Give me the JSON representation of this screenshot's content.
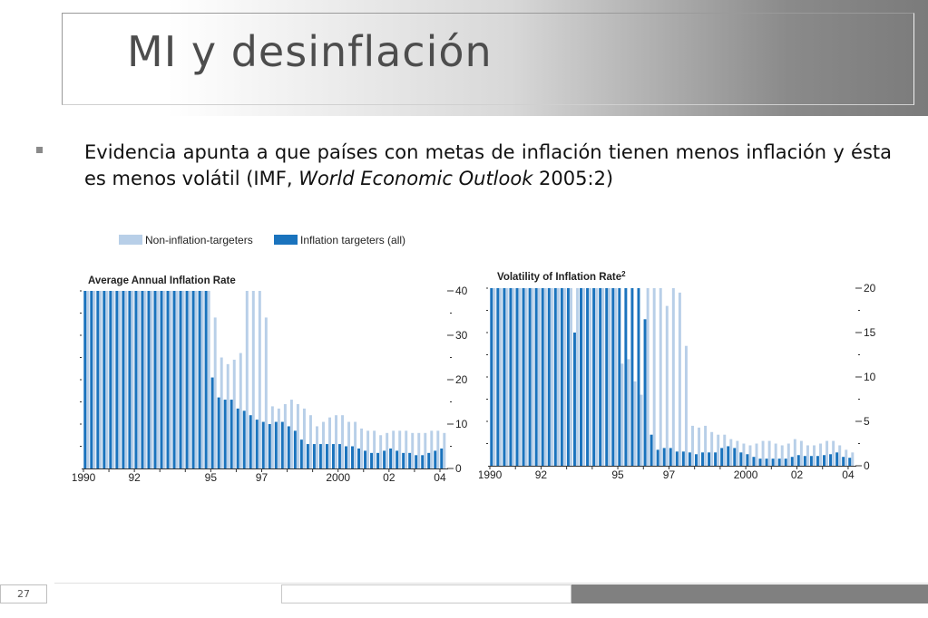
{
  "slide": {
    "title": "MI y desinflación",
    "bullet_text_1": "Evidencia apunta a que países con metas de inflación tienen menos inflación y ésta es menos volátil (IMF, ",
    "bullet_text_italic": "World Economic Outlook",
    "bullet_text_2": " 2005:2)",
    "page_number": "27"
  },
  "legend": [
    {
      "label": "Non-inflation-targeters",
      "color": "#b8cfe8"
    },
    {
      "label": "Inflation targeters (all)",
      "color": "#1a73bd"
    }
  ],
  "chart_data": [
    {
      "type": "bar",
      "title": "Average Annual Inflation Rate",
      "title_superscript": "",
      "x_start": 1990,
      "x_step": 0.25,
      "x_tick_labels": [
        {
          "x": 1990,
          "label": "1990"
        },
        {
          "x": 1992,
          "label": "92"
        },
        {
          "x": 1995,
          "label": "95"
        },
        {
          "x": 1997,
          "label": "97"
        },
        {
          "x": 2000,
          "label": "2000"
        },
        {
          "x": 2002,
          "label": "02"
        },
        {
          "x": 2004,
          "label": "04"
        }
      ],
      "ylim": [
        0,
        40
      ],
      "y_ticks": [
        0,
        10,
        20,
        30,
        40
      ],
      "y_label_side": "right",
      "series": [
        {
          "name": "Non-inflation-targeters",
          "color": "#b8cfe8",
          "values": [
            40,
            40,
            40,
            40,
            40,
            40,
            40,
            40,
            40,
            40,
            40,
            40,
            40,
            40,
            40,
            40,
            40,
            40,
            40,
            40,
            34,
            25,
            23.5,
            24.5,
            26,
            40,
            40,
            40,
            34,
            14,
            13.5,
            14.5,
            15.5,
            14.5,
            13.5,
            12,
            9.5,
            10.5,
            11.5,
            12,
            12,
            10.5,
            10.5,
            9,
            8.5,
            8.5,
            7.5,
            8,
            8.5,
            8.5,
            8.5,
            8,
            8,
            8,
            8.5,
            8.5,
            8
          ]
        },
        {
          "name": "Inflation targeters (all)",
          "color": "#1a73bd",
          "values": [
            40,
            40,
            40,
            40,
            40,
            40,
            40,
            40,
            40,
            40,
            40,
            40,
            40,
            40,
            40,
            40,
            40,
            40,
            40,
            40,
            20.5,
            16,
            15.5,
            15.5,
            13.5,
            13,
            12,
            11,
            10.5,
            10,
            10.5,
            10.5,
            9.5,
            8.5,
            6.5,
            5.5,
            5.5,
            5.5,
            5.5,
            5.5,
            5.5,
            5,
            5,
            4.5,
            4,
            3.5,
            3.5,
            4,
            4.5,
            4,
            3.5,
            3.5,
            3,
            3,
            3.5,
            4,
            4.5
          ]
        }
      ]
    },
    {
      "type": "bar",
      "title": "Volatility of Inflation Rate",
      "title_superscript": "2",
      "x_start": 1990,
      "x_step": 0.25,
      "x_tick_labels": [
        {
          "x": 1990,
          "label": "1990"
        },
        {
          "x": 1992,
          "label": "92"
        },
        {
          "x": 1995,
          "label": "95"
        },
        {
          "x": 1997,
          "label": "97"
        },
        {
          "x": 2000,
          "label": "2000"
        },
        {
          "x": 2002,
          "label": "02"
        },
        {
          "x": 2004,
          "label": "04"
        }
      ],
      "ylim": [
        0,
        20
      ],
      "y_ticks": [
        0,
        5,
        10,
        15,
        20
      ],
      "y_label_side": "right",
      "series": [
        {
          "name": "Non-inflation-targeters",
          "color": "#b8cfe8",
          "values": [
            20,
            20,
            20,
            20,
            20,
            20,
            20,
            20,
            20,
            20,
            20,
            20,
            20,
            20,
            20,
            20,
            20,
            20,
            20,
            20,
            11.5,
            12,
            9.5,
            8,
            20,
            20,
            20,
            18,
            20,
            19.5,
            13.5,
            4.5,
            4.3,
            4.5,
            3.8,
            3.5,
            3.5,
            3,
            2.8,
            2.5,
            2.3,
            2.5,
            2.8,
            2.8,
            2.5,
            2.3,
            2.5,
            3,
            2.8,
            2.3,
            2.3,
            2.5,
            2.8,
            2.8,
            2.3,
            1.8,
            1.5
          ]
        },
        {
          "name": "Inflation targeters (all)",
          "color": "#1a73bd",
          "values": [
            20,
            20,
            20,
            20,
            20,
            20,
            20,
            20,
            20,
            20,
            20,
            20,
            20,
            15,
            20,
            20,
            20,
            20,
            20,
            20,
            20,
            20,
            20,
            20,
            16.5,
            3.5,
            1.8,
            2,
            2,
            1.6,
            1.6,
            1.5,
            1.3,
            1.5,
            1.5,
            1.5,
            2,
            2.2,
            2,
            1.5,
            1.3,
            1,
            0.8,
            0.8,
            0.8,
            0.8,
            0.8,
            1,
            1.2,
            1.1,
            1.1,
            1.1,
            1.2,
            1.3,
            1.5,
            1,
            0.9
          ]
        }
      ]
    }
  ]
}
